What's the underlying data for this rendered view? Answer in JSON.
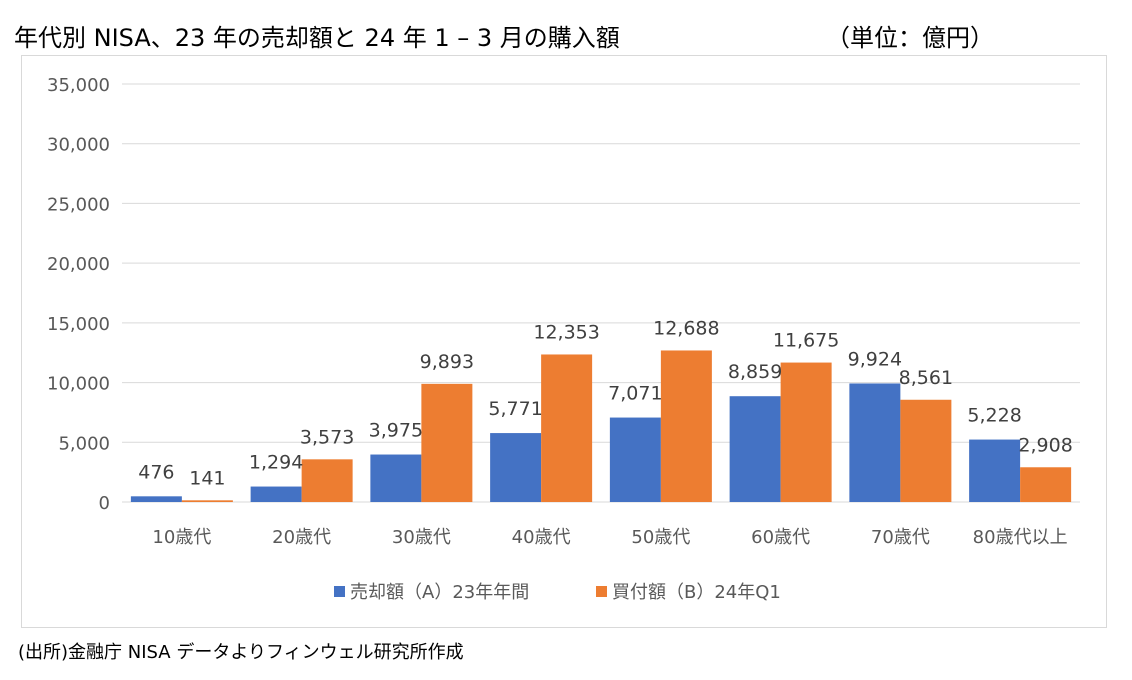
{
  "header": {
    "title": "年代別 NISA、23 年の売却額と 24 年 1 – 3 月の購入額",
    "unit": "（単位：億円）"
  },
  "footer": {
    "source": "(出所)金融庁 NISA データよりフィンウェル研究所作成"
  },
  "chart_data": {
    "type": "bar",
    "categories": [
      "10歳代",
      "20歳代",
      "30歳代",
      "40歳代",
      "50歳代",
      "60歳代",
      "70歳代",
      "80歳代以上"
    ],
    "series": [
      {
        "name": "売却額（A）23年年間",
        "values": [
          476,
          1294,
          3975,
          5771,
          7071,
          8859,
          9924,
          5228
        ],
        "color": "#4472C4"
      },
      {
        "name": "買付額（B）24年Q1",
        "values": [
          141,
          3573,
          9893,
          12353,
          12688,
          11675,
          8561,
          2908
        ],
        "color": "#ED7D31"
      }
    ],
    "yticks": [
      "0",
      "5,000",
      "10,000",
      "15,000",
      "20,000",
      "25,000",
      "30,000",
      "35,000"
    ],
    "ylim": [
      0,
      35000
    ],
    "grid": true,
    "legend_position": "bottom",
    "gridline_color": "#d9d9d9"
  }
}
